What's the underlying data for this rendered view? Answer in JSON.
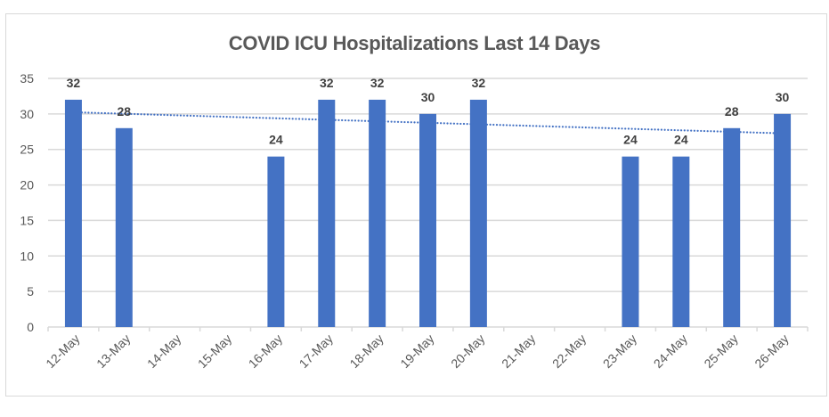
{
  "chart_data": {
    "type": "bar",
    "title": "COVID ICU Hospitalizations Last 14 Days",
    "xlabel": "",
    "ylabel": "",
    "categories": [
      "12-May",
      "13-May",
      "14-May",
      "15-May",
      "16-May",
      "17-May",
      "18-May",
      "19-May",
      "20-May",
      "21-May",
      "22-May",
      "23-May",
      "24-May",
      "25-May",
      "26-May"
    ],
    "values": [
      32,
      28,
      null,
      null,
      24,
      32,
      32,
      30,
      32,
      null,
      null,
      24,
      24,
      28,
      30
    ],
    "data_labels": [
      "32",
      "28",
      "",
      "",
      "24",
      "32",
      "32",
      "30",
      "32",
      "",
      "",
      "24",
      "24",
      "28",
      "30"
    ],
    "ylim": [
      0,
      35
    ],
    "yticks": [
      0,
      5,
      10,
      15,
      20,
      25,
      30,
      35
    ],
    "ytick_labels": [
      "0",
      "5",
      "10",
      "15",
      "20",
      "25",
      "30",
      "35"
    ],
    "grid": true,
    "legend": "none",
    "trendline": {
      "type": "linear",
      "style": "dotted",
      "start_value": 30.2,
      "end_value": 27.3
    },
    "colors": {
      "bar": "#4472c4",
      "trendline": "#4472c4",
      "grid": "#d9d9d9",
      "text": "#595959"
    }
  }
}
